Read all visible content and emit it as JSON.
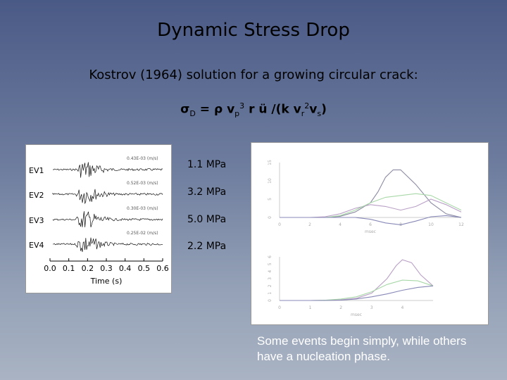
{
  "slide": {
    "title": "Dynamic Stress Drop",
    "subtitle": "Kostrov (1964) solution for a growing circular crack:",
    "formula": {
      "sigma": "σ",
      "sigma_sub": "D",
      "eq": "=",
      "rho": "ρ",
      "v": "v",
      "p_sub": "p",
      "cube_sup": "3",
      "r": "r",
      "u": "ü",
      "div": "/(k v",
      "r_sub": "r",
      "sq_sup": "2",
      "vs": "v",
      "s_sub": "s",
      "close": ")"
    },
    "caption": "Some events begin simply, while others have a nucleation phase."
  },
  "seismograms": {
    "events": [
      {
        "name": "EV1",
        "amplitude": "0.43E-03 (m/s)",
        "stress_drop": "1.1 MPa"
      },
      {
        "name": "EV2",
        "amplitude": "0.52E-03 (m/s)",
        "stress_drop": "3.2 MPa"
      },
      {
        "name": "EV3",
        "amplitude": "0.30E-03 (m/s)",
        "stress_drop": "5.0 MPa"
      },
      {
        "name": "EV4",
        "amplitude": "0.25E-02 (m/s)",
        "stress_drop": "2.2 MPa"
      }
    ],
    "x_ticks": [
      "0.0",
      "0.1",
      "0.2",
      "0.3",
      "0.4",
      "0.5",
      "0.6"
    ],
    "xlabel": "Time (s)"
  },
  "chart_data": [
    {
      "type": "line",
      "x_ticks": [
        "0",
        "2",
        "4",
        "6",
        "8",
        "10",
        "12"
      ],
      "y_ticks": [
        "0",
        "5",
        "10",
        "15"
      ],
      "xlim": [
        0,
        12
      ],
      "ylim": [
        0,
        15
      ],
      "xlabel": "msec",
      "colors": [
        "#8a8aa2",
        "#b9a0c6",
        "#a8d8a8",
        "#8888b8"
      ],
      "series": [
        {
          "x": [
            0,
            1,
            2,
            3,
            4,
            5,
            6,
            6.5,
            7,
            7.5,
            8,
            9,
            10,
            11,
            12
          ],
          "y": [
            0,
            0,
            0,
            0,
            0.3,
            1.5,
            4,
            7,
            11,
            13,
            13,
            9,
            4,
            1,
            0
          ]
        },
        {
          "x": [
            0,
            1,
            2,
            3,
            4,
            5,
            6,
            7,
            8,
            9,
            10,
            11,
            12
          ],
          "y": [
            0,
            0,
            0,
            0.2,
            1,
            2.5,
            3.5,
            3,
            2,
            3,
            5,
            3.5,
            1.5
          ]
        },
        {
          "x": [
            0,
            1,
            2,
            3,
            4,
            5,
            6,
            7,
            8,
            9,
            10,
            11,
            12
          ],
          "y": [
            0,
            0,
            0,
            0,
            0.5,
            2,
            4,
            5.5,
            6,
            6.5,
            6,
            4,
            2
          ]
        },
        {
          "x": [
            0,
            1,
            2,
            3,
            4,
            5,
            6,
            7,
            8,
            9,
            10,
            11,
            12
          ],
          "y": [
            0,
            0,
            0,
            0,
            0,
            0,
            -0.5,
            -1.5,
            -2,
            -1,
            0.2,
            0.5,
            0
          ]
        }
      ]
    },
    {
      "type": "line",
      "x_ticks": [
        "0",
        "1",
        "2",
        "3",
        "4"
      ],
      "y_ticks": [
        "0",
        "1",
        "2",
        "3",
        "4",
        "5",
        "6"
      ],
      "xlim": [
        0,
        5
      ],
      "ylim": [
        0,
        6
      ],
      "xlabel": "msec",
      "colors": [
        "#b9a0c6",
        "#a8d8a8",
        "#8888b8"
      ],
      "series": [
        {
          "x": [
            0,
            0.5,
            1,
            1.5,
            2,
            2.5,
            3,
            3.5,
            3.8,
            4,
            4.3,
            4.6,
            5
          ],
          "y": [
            0,
            0,
            0,
            0.05,
            0.1,
            0.3,
            1,
            3,
            4.8,
            5.6,
            5.2,
            3.5,
            2
          ]
        },
        {
          "x": [
            0,
            0.5,
            1,
            1.5,
            2,
            2.5,
            3,
            3.5,
            4,
            4.5,
            5
          ],
          "y": [
            0,
            0,
            0,
            0.05,
            0.2,
            0.5,
            1.2,
            2.2,
            2.8,
            2.7,
            2
          ]
        },
        {
          "x": [
            0,
            0.5,
            1,
            1.5,
            2,
            2.5,
            3,
            3.5,
            4,
            4.5,
            5
          ],
          "y": [
            0,
            0,
            0,
            0,
            0.05,
            0.2,
            0.5,
            0.9,
            1.4,
            1.8,
            2
          ]
        }
      ]
    }
  ]
}
